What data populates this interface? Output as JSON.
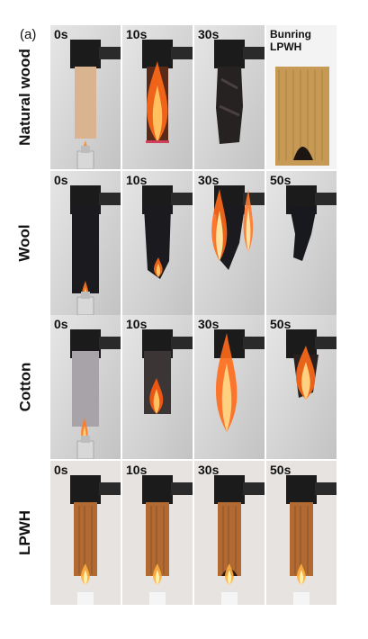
{
  "panel_label": "(a)",
  "rows": [
    {
      "label": "Natural wood",
      "tiles": [
        {
          "time": "0s",
          "scene": "wood-unburnt"
        },
        {
          "time": "10s",
          "scene": "wood-burning"
        },
        {
          "time": "30s",
          "scene": "wood-charred"
        },
        {
          "time": "Bunring\nLPWH",
          "scene": "lpwh-closeup"
        }
      ]
    },
    {
      "label": "Wool",
      "tiles": [
        {
          "time": "0s",
          "scene": "wool-unburnt"
        },
        {
          "time": "10s",
          "scene": "wool-burning-small"
        },
        {
          "time": "30s",
          "scene": "wool-burning-large"
        },
        {
          "time": "50s",
          "scene": "wool-residue"
        }
      ]
    },
    {
      "label": "Cotton",
      "tiles": [
        {
          "time": "0s",
          "scene": "cotton-unburnt"
        },
        {
          "time": "10s",
          "scene": "cotton-burning-small"
        },
        {
          "time": "30s",
          "scene": "cotton-burning-large"
        },
        {
          "time": "50s",
          "scene": "cotton-burning-end"
        }
      ]
    },
    {
      "label": "LPWH",
      "tiles": [
        {
          "time": "0s",
          "scene": "lpwh-flame"
        },
        {
          "time": "10s",
          "scene": "lpwh-flame"
        },
        {
          "time": "30s",
          "scene": "lpwh-flame-char"
        },
        {
          "time": "50s",
          "scene": "lpwh-flame"
        }
      ]
    }
  ]
}
